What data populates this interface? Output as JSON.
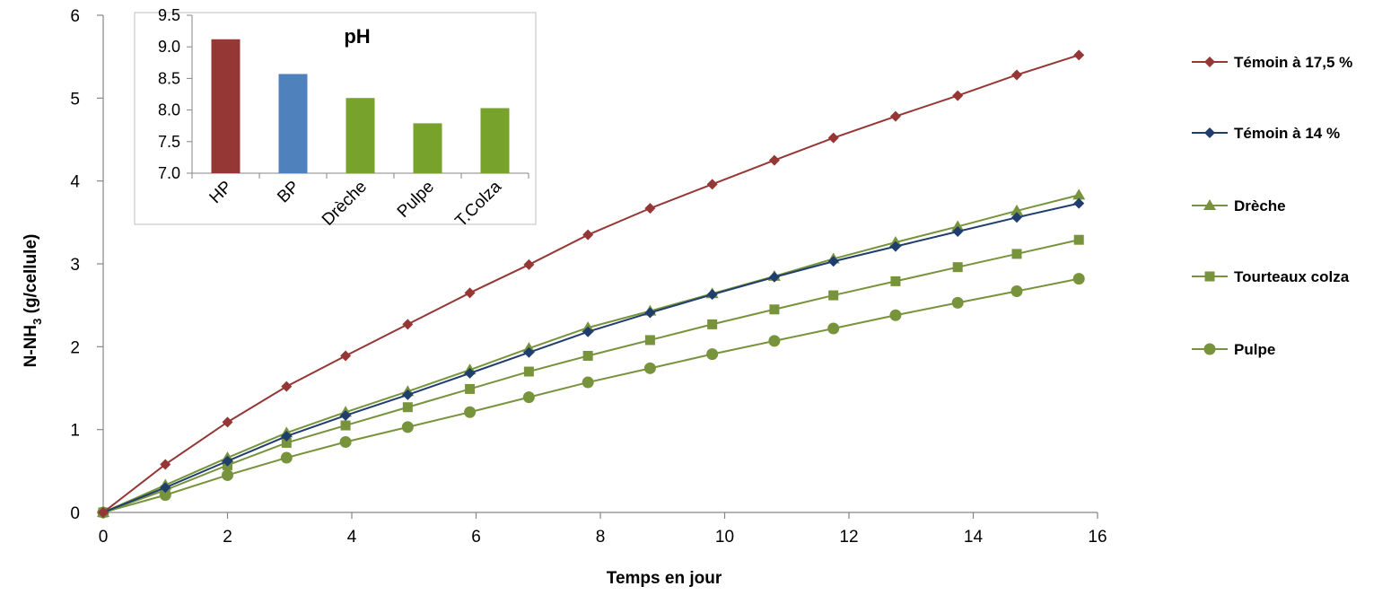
{
  "chart_data": [
    {
      "type": "line",
      "xlabel": "Temps en jour",
      "ylabel_main": "N-NH",
      "ylabel_sub": "3",
      "ylabel_rest": " (g/cellule)",
      "xlim": [
        0,
        16
      ],
      "ylim": [
        0,
        6
      ],
      "x_ticks": [
        "0",
        "2",
        "4",
        "6",
        "8",
        "10",
        "12",
        "14",
        "16"
      ],
      "y_ticks": [
        "0",
        "1",
        "2",
        "3",
        "4",
        "5",
        "6"
      ],
      "grid": false,
      "legend_position": "right",
      "x": [
        0,
        1,
        2,
        2.95,
        3.9,
        4.9,
        5.9,
        6.85,
        7.8,
        8.8,
        9.8,
        10.8,
        11.75,
        12.75,
        13.75,
        14.7,
        15.7
      ],
      "series": [
        {
          "name": "Témoin à 17,5 %",
          "color": "#953735",
          "marker": "diamond",
          "values": [
            0,
            0.58,
            1.09,
            1.52,
            1.89,
            2.27,
            2.65,
            2.99,
            3.35,
            3.67,
            3.96,
            4.25,
            4.52,
            4.78,
            5.03,
            5.28,
            5.52
          ]
        },
        {
          "name": "Témoin à 14 %",
          "color": "#1f3e6e",
          "marker": "diamond",
          "values": [
            0,
            0.3,
            0.62,
            0.92,
            1.17,
            1.42,
            1.68,
            1.93,
            2.18,
            2.41,
            2.63,
            2.84,
            3.03,
            3.21,
            3.39,
            3.56,
            3.73
          ]
        },
        {
          "name": "Drèche",
          "color": "#77933c",
          "marker": "triangle",
          "values": [
            0,
            0.33,
            0.66,
            0.96,
            1.21,
            1.46,
            1.72,
            1.98,
            2.23,
            2.43,
            2.64,
            2.85,
            3.06,
            3.26,
            3.45,
            3.64,
            3.83
          ]
        },
        {
          "name": "Tourteaux colza",
          "color": "#77933c",
          "marker": "square",
          "values": [
            0,
            0.27,
            0.57,
            0.84,
            1.05,
            1.27,
            1.49,
            1.7,
            1.89,
            2.08,
            2.27,
            2.45,
            2.62,
            2.79,
            2.96,
            3.12,
            3.29
          ]
        },
        {
          "name": "Pulpe",
          "color": "#77933c",
          "marker": "circle",
          "values": [
            0,
            0.21,
            0.45,
            0.66,
            0.85,
            1.03,
            1.21,
            1.39,
            1.57,
            1.74,
            1.91,
            2.07,
            2.22,
            2.38,
            2.53,
            2.67,
            2.82
          ]
        }
      ]
    },
    {
      "type": "bar",
      "title": "pH",
      "categories": [
        "HP",
        "BP",
        "Drèche",
        "Pulpe",
        "T.Colza"
      ],
      "values": [
        9.12,
        8.57,
        8.19,
        7.79,
        8.03
      ],
      "colors": [
        "#953735",
        "#4f81bd",
        "#77a22c",
        "#77a22c",
        "#77a22c"
      ],
      "ylim": [
        7.0,
        9.5
      ],
      "y_ticks": [
        "7.0",
        "7.5",
        "8.0",
        "8.5",
        "9.0",
        "9.5"
      ],
      "grid": false
    }
  ]
}
